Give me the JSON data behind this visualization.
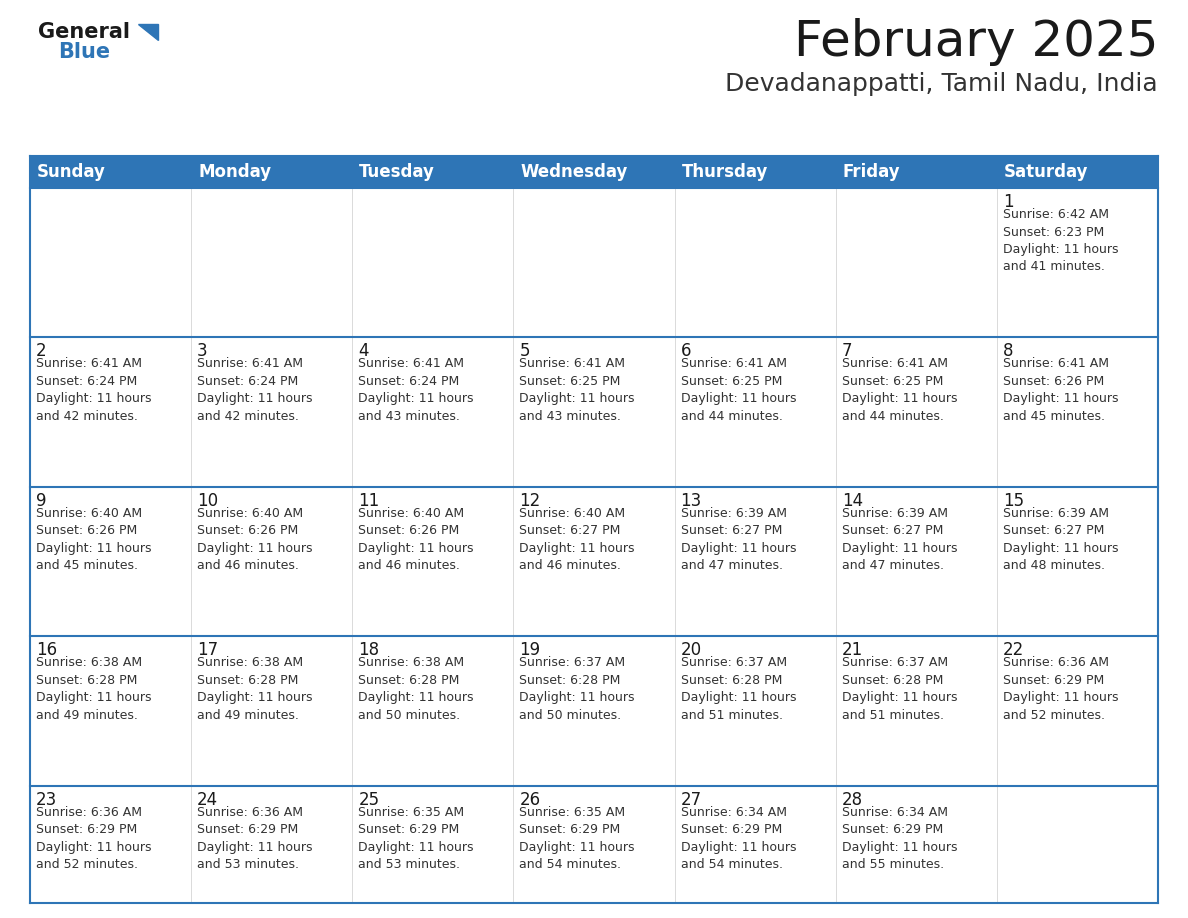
{
  "title": "February 2025",
  "subtitle": "Devadanappatti, Tamil Nadu, India",
  "header_bg": "#2E75B6",
  "header_text": "#FFFFFF",
  "cell_bg_white": "#FFFFFF",
  "cell_bg_gray": "#F2F2F2",
  "row_border_color": "#2E75B6",
  "cell_border_color": "#CCCCCC",
  "title_color": "#1a1a1a",
  "subtitle_color": "#333333",
  "day_num_color": "#1a1a1a",
  "info_text_color": "#333333",
  "day_headers": [
    "Sunday",
    "Monday",
    "Tuesday",
    "Wednesday",
    "Thursday",
    "Friday",
    "Saturday"
  ],
  "calendar_data": [
    [
      {
        "day": "",
        "info": ""
      },
      {
        "day": "",
        "info": ""
      },
      {
        "day": "",
        "info": ""
      },
      {
        "day": "",
        "info": ""
      },
      {
        "day": "",
        "info": ""
      },
      {
        "day": "",
        "info": ""
      },
      {
        "day": "1",
        "info": "Sunrise: 6:42 AM\nSunset: 6:23 PM\nDaylight: 11 hours\nand 41 minutes."
      }
    ],
    [
      {
        "day": "2",
        "info": "Sunrise: 6:41 AM\nSunset: 6:24 PM\nDaylight: 11 hours\nand 42 minutes."
      },
      {
        "day": "3",
        "info": "Sunrise: 6:41 AM\nSunset: 6:24 PM\nDaylight: 11 hours\nand 42 minutes."
      },
      {
        "day": "4",
        "info": "Sunrise: 6:41 AM\nSunset: 6:24 PM\nDaylight: 11 hours\nand 43 minutes."
      },
      {
        "day": "5",
        "info": "Sunrise: 6:41 AM\nSunset: 6:25 PM\nDaylight: 11 hours\nand 43 minutes."
      },
      {
        "day": "6",
        "info": "Sunrise: 6:41 AM\nSunset: 6:25 PM\nDaylight: 11 hours\nand 44 minutes."
      },
      {
        "day": "7",
        "info": "Sunrise: 6:41 AM\nSunset: 6:25 PM\nDaylight: 11 hours\nand 44 minutes."
      },
      {
        "day": "8",
        "info": "Sunrise: 6:41 AM\nSunset: 6:26 PM\nDaylight: 11 hours\nand 45 minutes."
      }
    ],
    [
      {
        "day": "9",
        "info": "Sunrise: 6:40 AM\nSunset: 6:26 PM\nDaylight: 11 hours\nand 45 minutes."
      },
      {
        "day": "10",
        "info": "Sunrise: 6:40 AM\nSunset: 6:26 PM\nDaylight: 11 hours\nand 46 minutes."
      },
      {
        "day": "11",
        "info": "Sunrise: 6:40 AM\nSunset: 6:26 PM\nDaylight: 11 hours\nand 46 minutes."
      },
      {
        "day": "12",
        "info": "Sunrise: 6:40 AM\nSunset: 6:27 PM\nDaylight: 11 hours\nand 46 minutes."
      },
      {
        "day": "13",
        "info": "Sunrise: 6:39 AM\nSunset: 6:27 PM\nDaylight: 11 hours\nand 47 minutes."
      },
      {
        "day": "14",
        "info": "Sunrise: 6:39 AM\nSunset: 6:27 PM\nDaylight: 11 hours\nand 47 minutes."
      },
      {
        "day": "15",
        "info": "Sunrise: 6:39 AM\nSunset: 6:27 PM\nDaylight: 11 hours\nand 48 minutes."
      }
    ],
    [
      {
        "day": "16",
        "info": "Sunrise: 6:38 AM\nSunset: 6:28 PM\nDaylight: 11 hours\nand 49 minutes."
      },
      {
        "day": "17",
        "info": "Sunrise: 6:38 AM\nSunset: 6:28 PM\nDaylight: 11 hours\nand 49 minutes."
      },
      {
        "day": "18",
        "info": "Sunrise: 6:38 AM\nSunset: 6:28 PM\nDaylight: 11 hours\nand 50 minutes."
      },
      {
        "day": "19",
        "info": "Sunrise: 6:37 AM\nSunset: 6:28 PM\nDaylight: 11 hours\nand 50 minutes."
      },
      {
        "day": "20",
        "info": "Sunrise: 6:37 AM\nSunset: 6:28 PM\nDaylight: 11 hours\nand 51 minutes."
      },
      {
        "day": "21",
        "info": "Sunrise: 6:37 AM\nSunset: 6:28 PM\nDaylight: 11 hours\nand 51 minutes."
      },
      {
        "day": "22",
        "info": "Sunrise: 6:36 AM\nSunset: 6:29 PM\nDaylight: 11 hours\nand 52 minutes."
      }
    ],
    [
      {
        "day": "23",
        "info": "Sunrise: 6:36 AM\nSunset: 6:29 PM\nDaylight: 11 hours\nand 52 minutes."
      },
      {
        "day": "24",
        "info": "Sunrise: 6:36 AM\nSunset: 6:29 PM\nDaylight: 11 hours\nand 53 minutes."
      },
      {
        "day": "25",
        "info": "Sunrise: 6:35 AM\nSunset: 6:29 PM\nDaylight: 11 hours\nand 53 minutes."
      },
      {
        "day": "26",
        "info": "Sunrise: 6:35 AM\nSunset: 6:29 PM\nDaylight: 11 hours\nand 54 minutes."
      },
      {
        "day": "27",
        "info": "Sunrise: 6:34 AM\nSunset: 6:29 PM\nDaylight: 11 hours\nand 54 minutes."
      },
      {
        "day": "28",
        "info": "Sunrise: 6:34 AM\nSunset: 6:29 PM\nDaylight: 11 hours\nand 55 minutes."
      },
      {
        "day": "",
        "info": ""
      }
    ]
  ],
  "logo_general_color": "#1a1a1a",
  "logo_blue_color": "#2E75B6",
  "logo_triangle_color": "#2E75B6",
  "title_fontsize": 36,
  "subtitle_fontsize": 18,
  "header_fontsize": 12,
  "day_num_fontsize": 12,
  "info_fontsize": 9
}
